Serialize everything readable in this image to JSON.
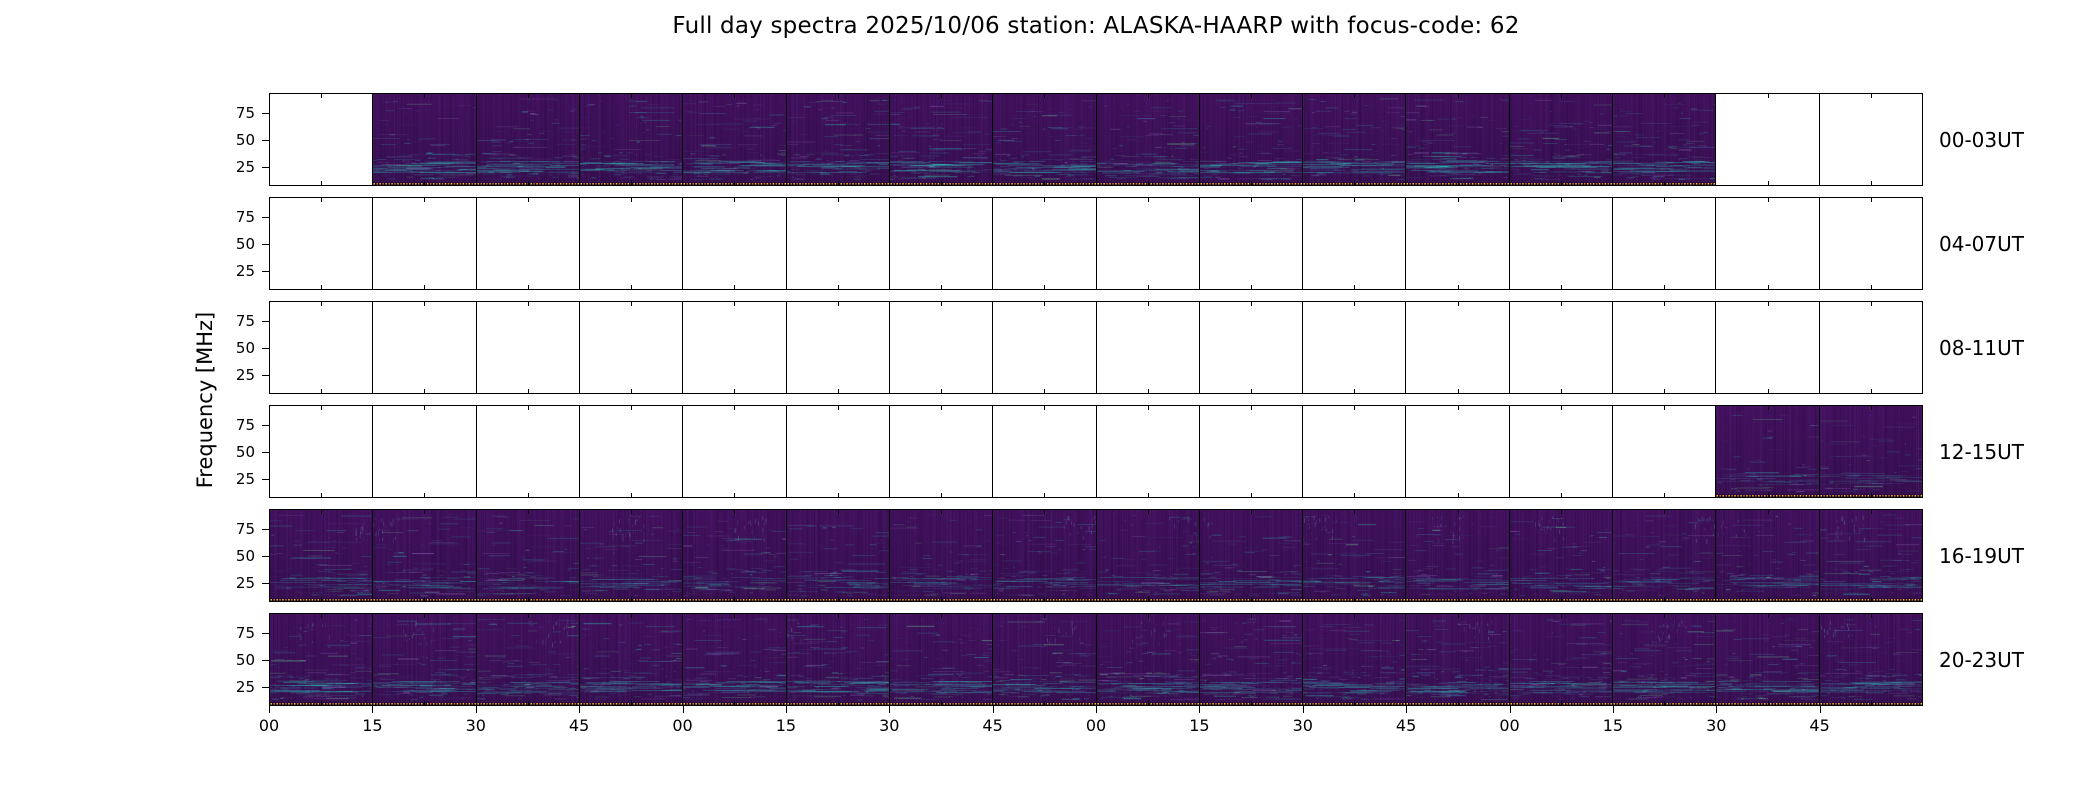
{
  "title": "Full day spectra 2025/10/06 station: ALASKA-HAARP with focus-code: 62",
  "station": "ALASKA-HAARP",
  "date": "2025/10/06",
  "focus_code": "62",
  "chart_data": {
    "type": "heatmap",
    "subtype": "radio-spectrogram-daily-grid",
    "title": "Full day spectra 2025/10/06 station: ALASKA-HAARP with focus-code: 62",
    "ylabel": "Frequency [MHz]",
    "colormap": "viridis",
    "legend": "none",
    "grid": "off",
    "x_axis": {
      "segments_per_row": 16,
      "segment_minutes": 15,
      "hours_per_row": 4,
      "tick_labels": [
        "00",
        "15",
        "30",
        "45",
        "00",
        "15",
        "30",
        "45",
        "00",
        "15",
        "30",
        "45",
        "00",
        "15",
        "30",
        "45"
      ]
    },
    "y_axis": {
      "tick_values": [
        25,
        50,
        75
      ],
      "range_mhz": [
        7,
        93
      ]
    },
    "rows": [
      {
        "label": "00-03UT",
        "coverage": "data 00:15-03:30 UT",
        "filled": {
          "start": 1,
          "end": 13
        },
        "style": {
          "streaks": 55,
          "band": 1.0,
          "upper_marks": false
        }
      },
      {
        "label": "04-07UT",
        "coverage": "no data",
        "filled": null,
        "style": null
      },
      {
        "label": "08-11UT",
        "coverage": "no data",
        "filled": null,
        "style": null
      },
      {
        "label": "12-15UT",
        "coverage": "data 15:30-16:00 UT",
        "filled": {
          "start": 14,
          "end": 15
        },
        "style": {
          "streaks": 30,
          "band": 0.45,
          "upper_marks": false
        }
      },
      {
        "label": "16-19UT",
        "coverage": "data 16:00-20:00 UT",
        "filled": {
          "start": 0,
          "end": 15
        },
        "style": {
          "streaks": 45,
          "band": 0.55,
          "upper_marks": true
        }
      },
      {
        "label": "20-23UT",
        "coverage": "data 20:00-24:00 UT",
        "filled": {
          "start": 0,
          "end": 15
        },
        "style": {
          "streaks": 60,
          "band": 0.85,
          "upper_marks": true
        }
      }
    ],
    "colors": {
      "figure_background": "#ffffff",
      "frame": "#000000",
      "spectrum_base_top": "#451261",
      "spectrum_base_bottom": "#3a1054",
      "streak_teal": "#2db9af",
      "streak_green": "#6ed296",
      "streak_blue": "#4682be",
      "streak_lilac": "#9678cd",
      "marker_yellow": "#ffd21f",
      "marker_orange": "#f07f1f",
      "marker_strip": "#160424"
    }
  }
}
